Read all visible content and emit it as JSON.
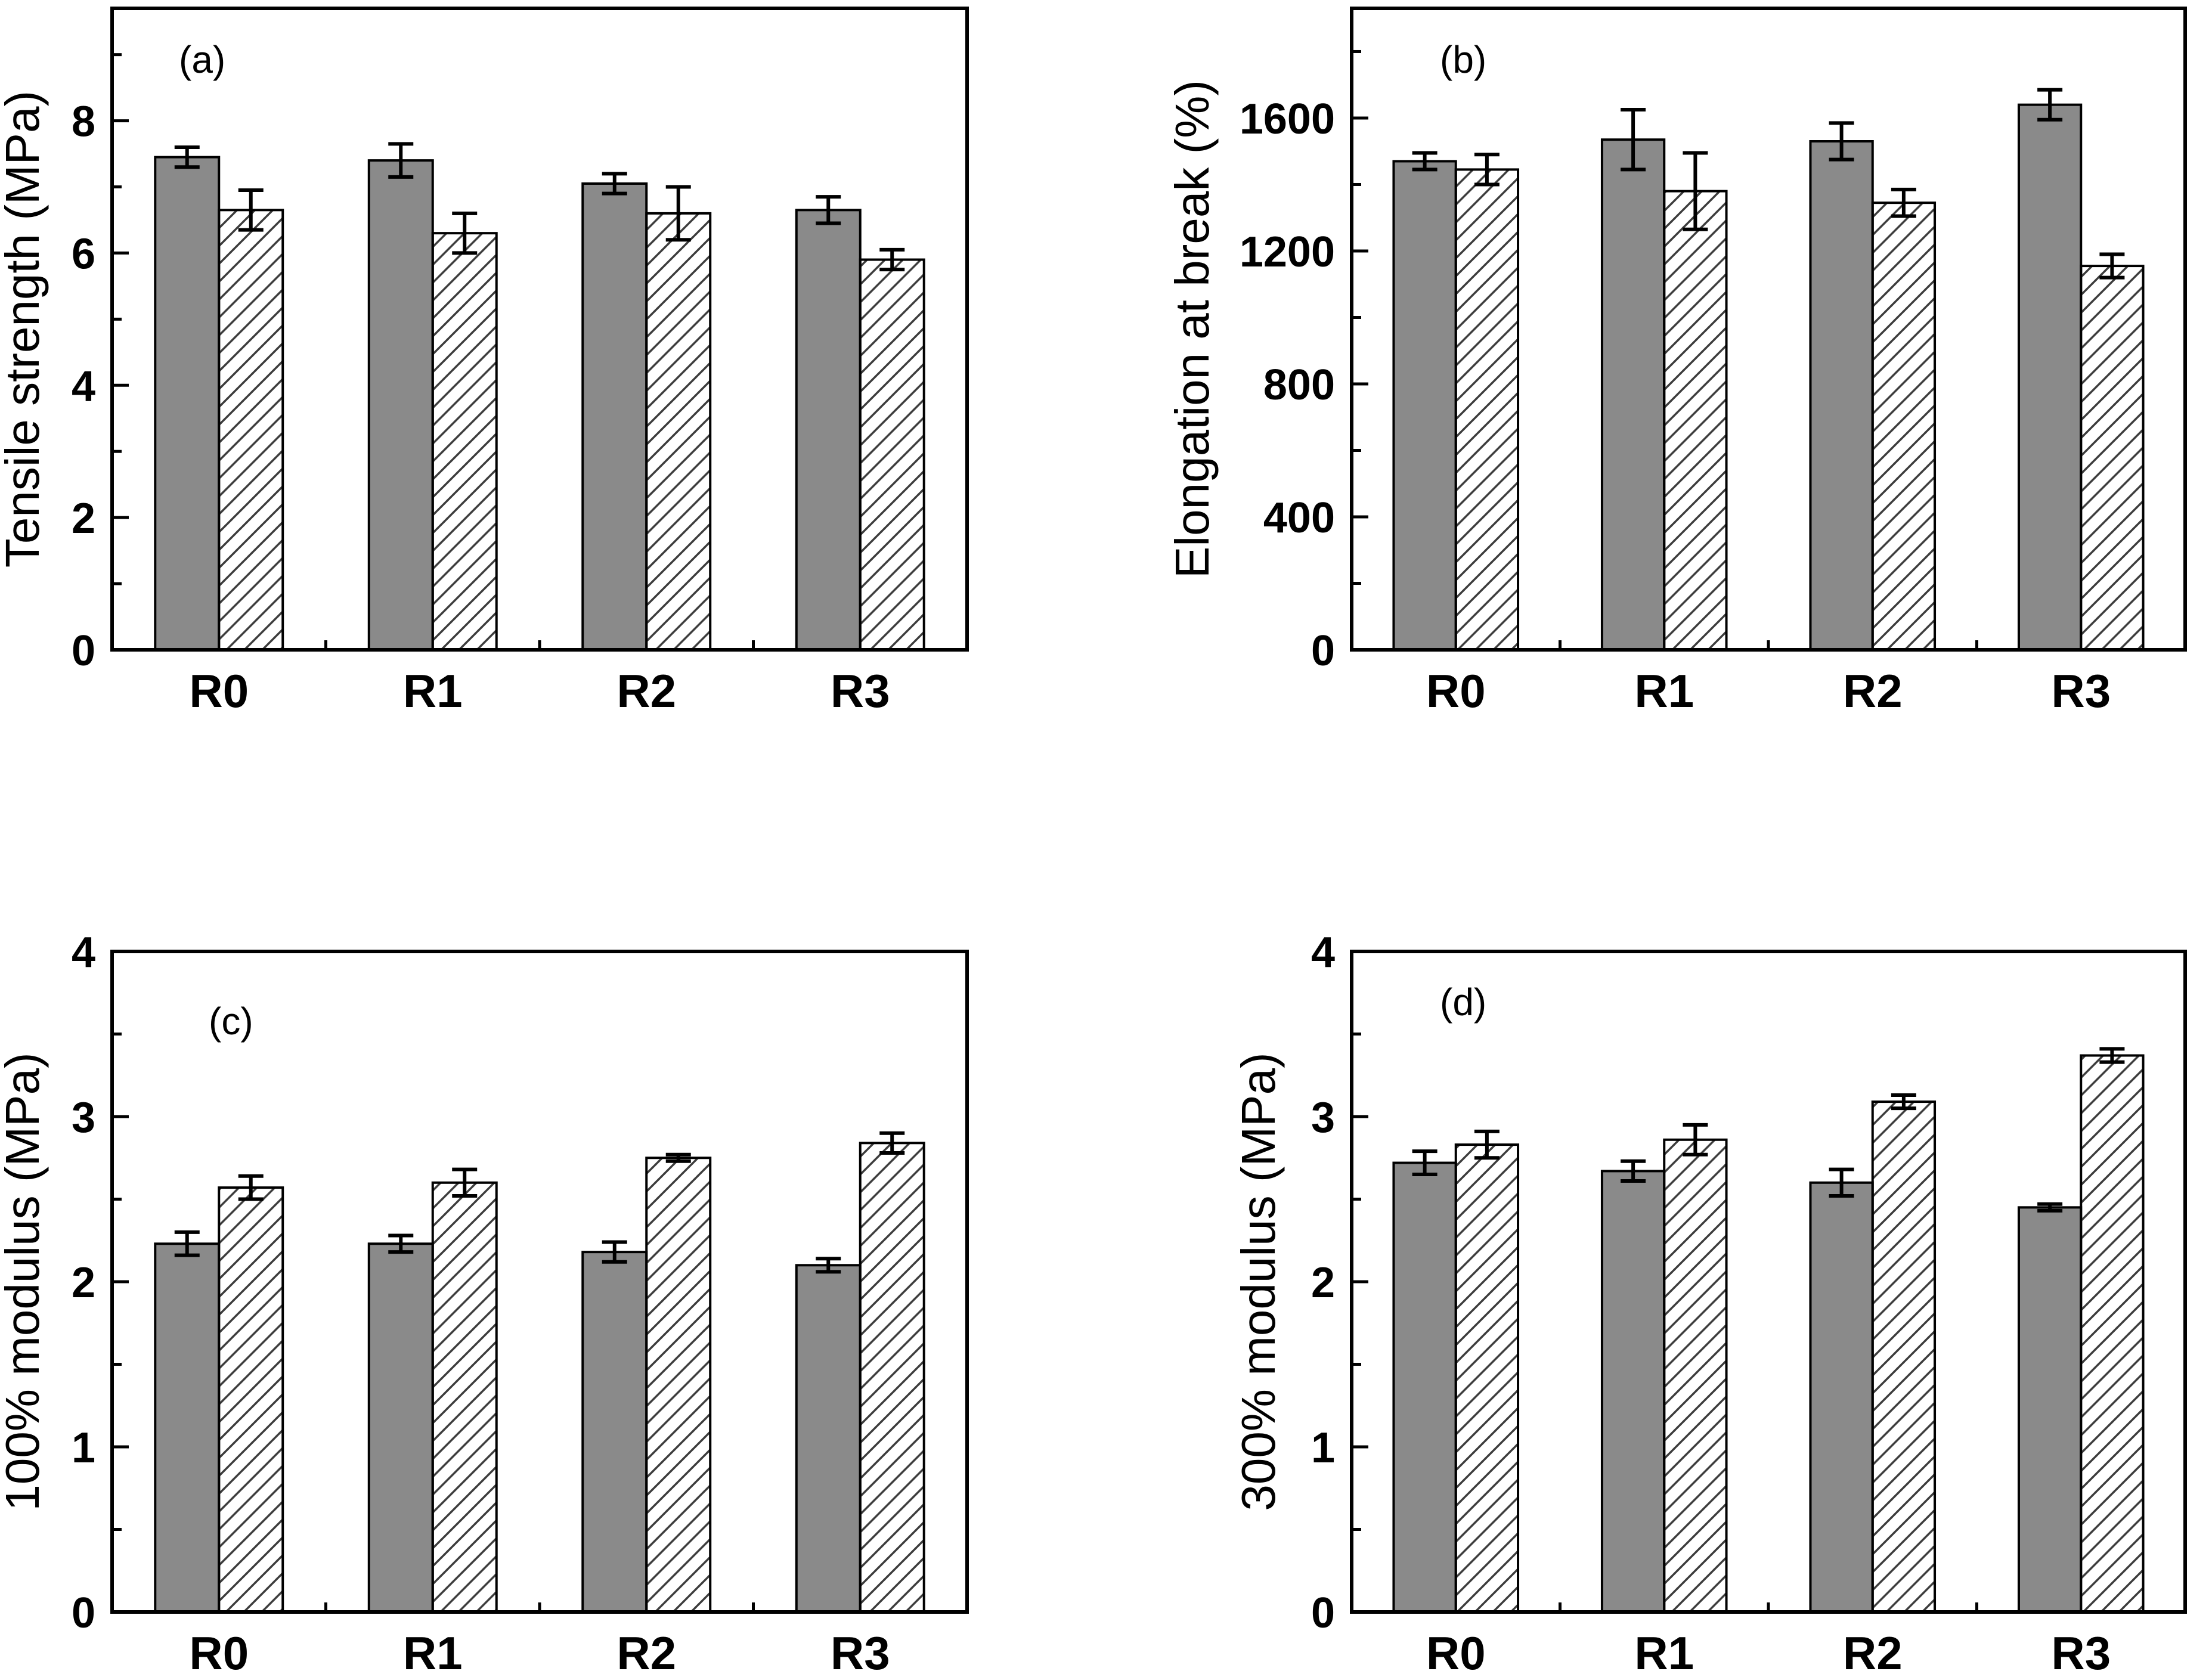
{
  "figure": {
    "background": "#ffffff",
    "frame_color": "#000000",
    "bar_fill_solid": "#8a8a8a",
    "bar_stroke": "#000000",
    "hatch_line_color": "#3d3d3d",
    "error_bar_color": "#000000"
  },
  "chart_data": [
    {
      "type": "bar",
      "panel_label": "(a)",
      "title": "",
      "xlabel": "",
      "ylabel": "Tensile strength (MPa)",
      "categories": [
        "R0",
        "R1",
        "R2",
        "R3"
      ],
      "series": [
        {
          "name": "solid-gray-bars",
          "values": [
            7.45,
            7.4,
            7.05,
            6.65
          ],
          "errors": [
            0.15,
            0.25,
            0.15,
            0.2
          ]
        },
        {
          "name": "hatched-bars",
          "values": [
            6.65,
            6.3,
            6.6,
            5.9
          ],
          "errors": [
            0.3,
            0.3,
            0.4,
            0.15
          ]
        }
      ],
      "ylim": [
        0,
        9.7
      ],
      "yticks_major": [
        0,
        2,
        4,
        6,
        8
      ],
      "ytick_labels": [
        "0",
        "2",
        "4",
        "6",
        "8"
      ],
      "ytick_minor_step": 1,
      "grid": false,
      "legend": "none"
    },
    {
      "type": "bar",
      "panel_label": "(b)",
      "title": "",
      "xlabel": "",
      "ylabel": "Elongation at break (%)",
      "categories": [
        "R0",
        "R1",
        "R2",
        "R3"
      ],
      "series": [
        {
          "name": "solid-gray-bars",
          "values": [
            1470,
            1535,
            1530,
            1640
          ],
          "errors": [
            25,
            90,
            55,
            45
          ]
        },
        {
          "name": "hatched-bars",
          "values": [
            1445,
            1380,
            1345,
            1155
          ],
          "errors": [
            45,
            115,
            40,
            35
          ]
        }
      ],
      "ylim": [
        0,
        1930
      ],
      "yticks_major": [
        0,
        400,
        800,
        1200,
        1600
      ],
      "ytick_labels": [
        "0",
        "400",
        "800",
        "1200",
        "1600"
      ],
      "ytick_minor_step": 200,
      "grid": false,
      "legend": "none"
    },
    {
      "type": "bar",
      "panel_label": "(c)",
      "title": "",
      "xlabel": "",
      "ylabel": "100% modulus (MPa)",
      "categories": [
        "R0",
        "R1",
        "R2",
        "R3"
      ],
      "series": [
        {
          "name": "solid-gray-bars",
          "values": [
            2.23,
            2.23,
            2.18,
            2.1
          ],
          "errors": [
            0.07,
            0.05,
            0.06,
            0.04
          ]
        },
        {
          "name": "hatched-bars",
          "values": [
            2.57,
            2.6,
            2.75,
            2.84
          ],
          "errors": [
            0.07,
            0.08,
            0.02,
            0.06
          ]
        }
      ],
      "ylim": [
        0,
        4
      ],
      "yticks_major": [
        0,
        1,
        2,
        3,
        4
      ],
      "ytick_labels": [
        "0",
        "1",
        "2",
        "3",
        "4"
      ],
      "ytick_minor_step": 0.5,
      "grid": false,
      "legend": "none"
    },
    {
      "type": "bar",
      "panel_label": "(d)",
      "title": "",
      "xlabel": "",
      "ylabel": "300% modulus (MPa)",
      "categories": [
        "R0",
        "R1",
        "R2",
        "R3"
      ],
      "series": [
        {
          "name": "solid-gray-bars",
          "values": [
            2.72,
            2.67,
            2.6,
            2.45
          ],
          "errors": [
            0.07,
            0.06,
            0.08,
            0.02
          ]
        },
        {
          "name": "hatched-bars",
          "values": [
            2.83,
            2.86,
            3.09,
            3.37
          ],
          "errors": [
            0.08,
            0.09,
            0.04,
            0.04
          ]
        }
      ],
      "ylim": [
        0,
        4
      ],
      "yticks_major": [
        0,
        1,
        2,
        3,
        4
      ],
      "ytick_labels": [
        "0",
        "1",
        "2",
        "3",
        "4"
      ],
      "ytick_minor_step": 0.5,
      "grid": false,
      "legend": "none"
    }
  ]
}
